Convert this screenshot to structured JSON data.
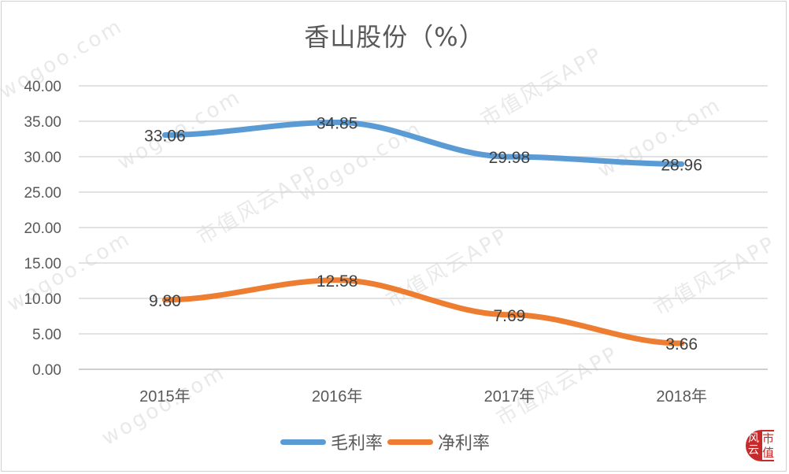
{
  "title": "香山股份（%）",
  "chart_data": {
    "type": "line",
    "title": "香山股份（%）",
    "categories": [
      "2015年",
      "2016年",
      "2017年",
      "2018年"
    ],
    "series": [
      {
        "name": "毛利率",
        "color": "#5B9BD5",
        "values": [
          33.06,
          34.85,
          29.98,
          28.96
        ],
        "labels": [
          "33.06",
          "34.85",
          "29.98",
          "28.96"
        ]
      },
      {
        "name": "净利率",
        "color": "#ED7D31",
        "values": [
          9.8,
          12.58,
          7.69,
          3.66
        ],
        "labels": [
          "9.80",
          "12.58",
          "7.69",
          "3.66"
        ]
      }
    ],
    "xlabel": "",
    "ylabel": "",
    "ylim": [
      0,
      40
    ],
    "yticks": [
      "0.00",
      "5.00",
      "10.00",
      "15.00",
      "20.00",
      "25.00",
      "30.00",
      "35.00",
      "40.00"
    ],
    "grid": true,
    "legend_position": "bottom"
  },
  "legend": {
    "items": [
      "毛利率",
      "净利率"
    ]
  },
  "watermark": {
    "text_a": "wogoo.com",
    "text_b": "市值风云APP"
  },
  "logo": {
    "left": "风云",
    "right_top": "市",
    "right_bottom": "值"
  }
}
